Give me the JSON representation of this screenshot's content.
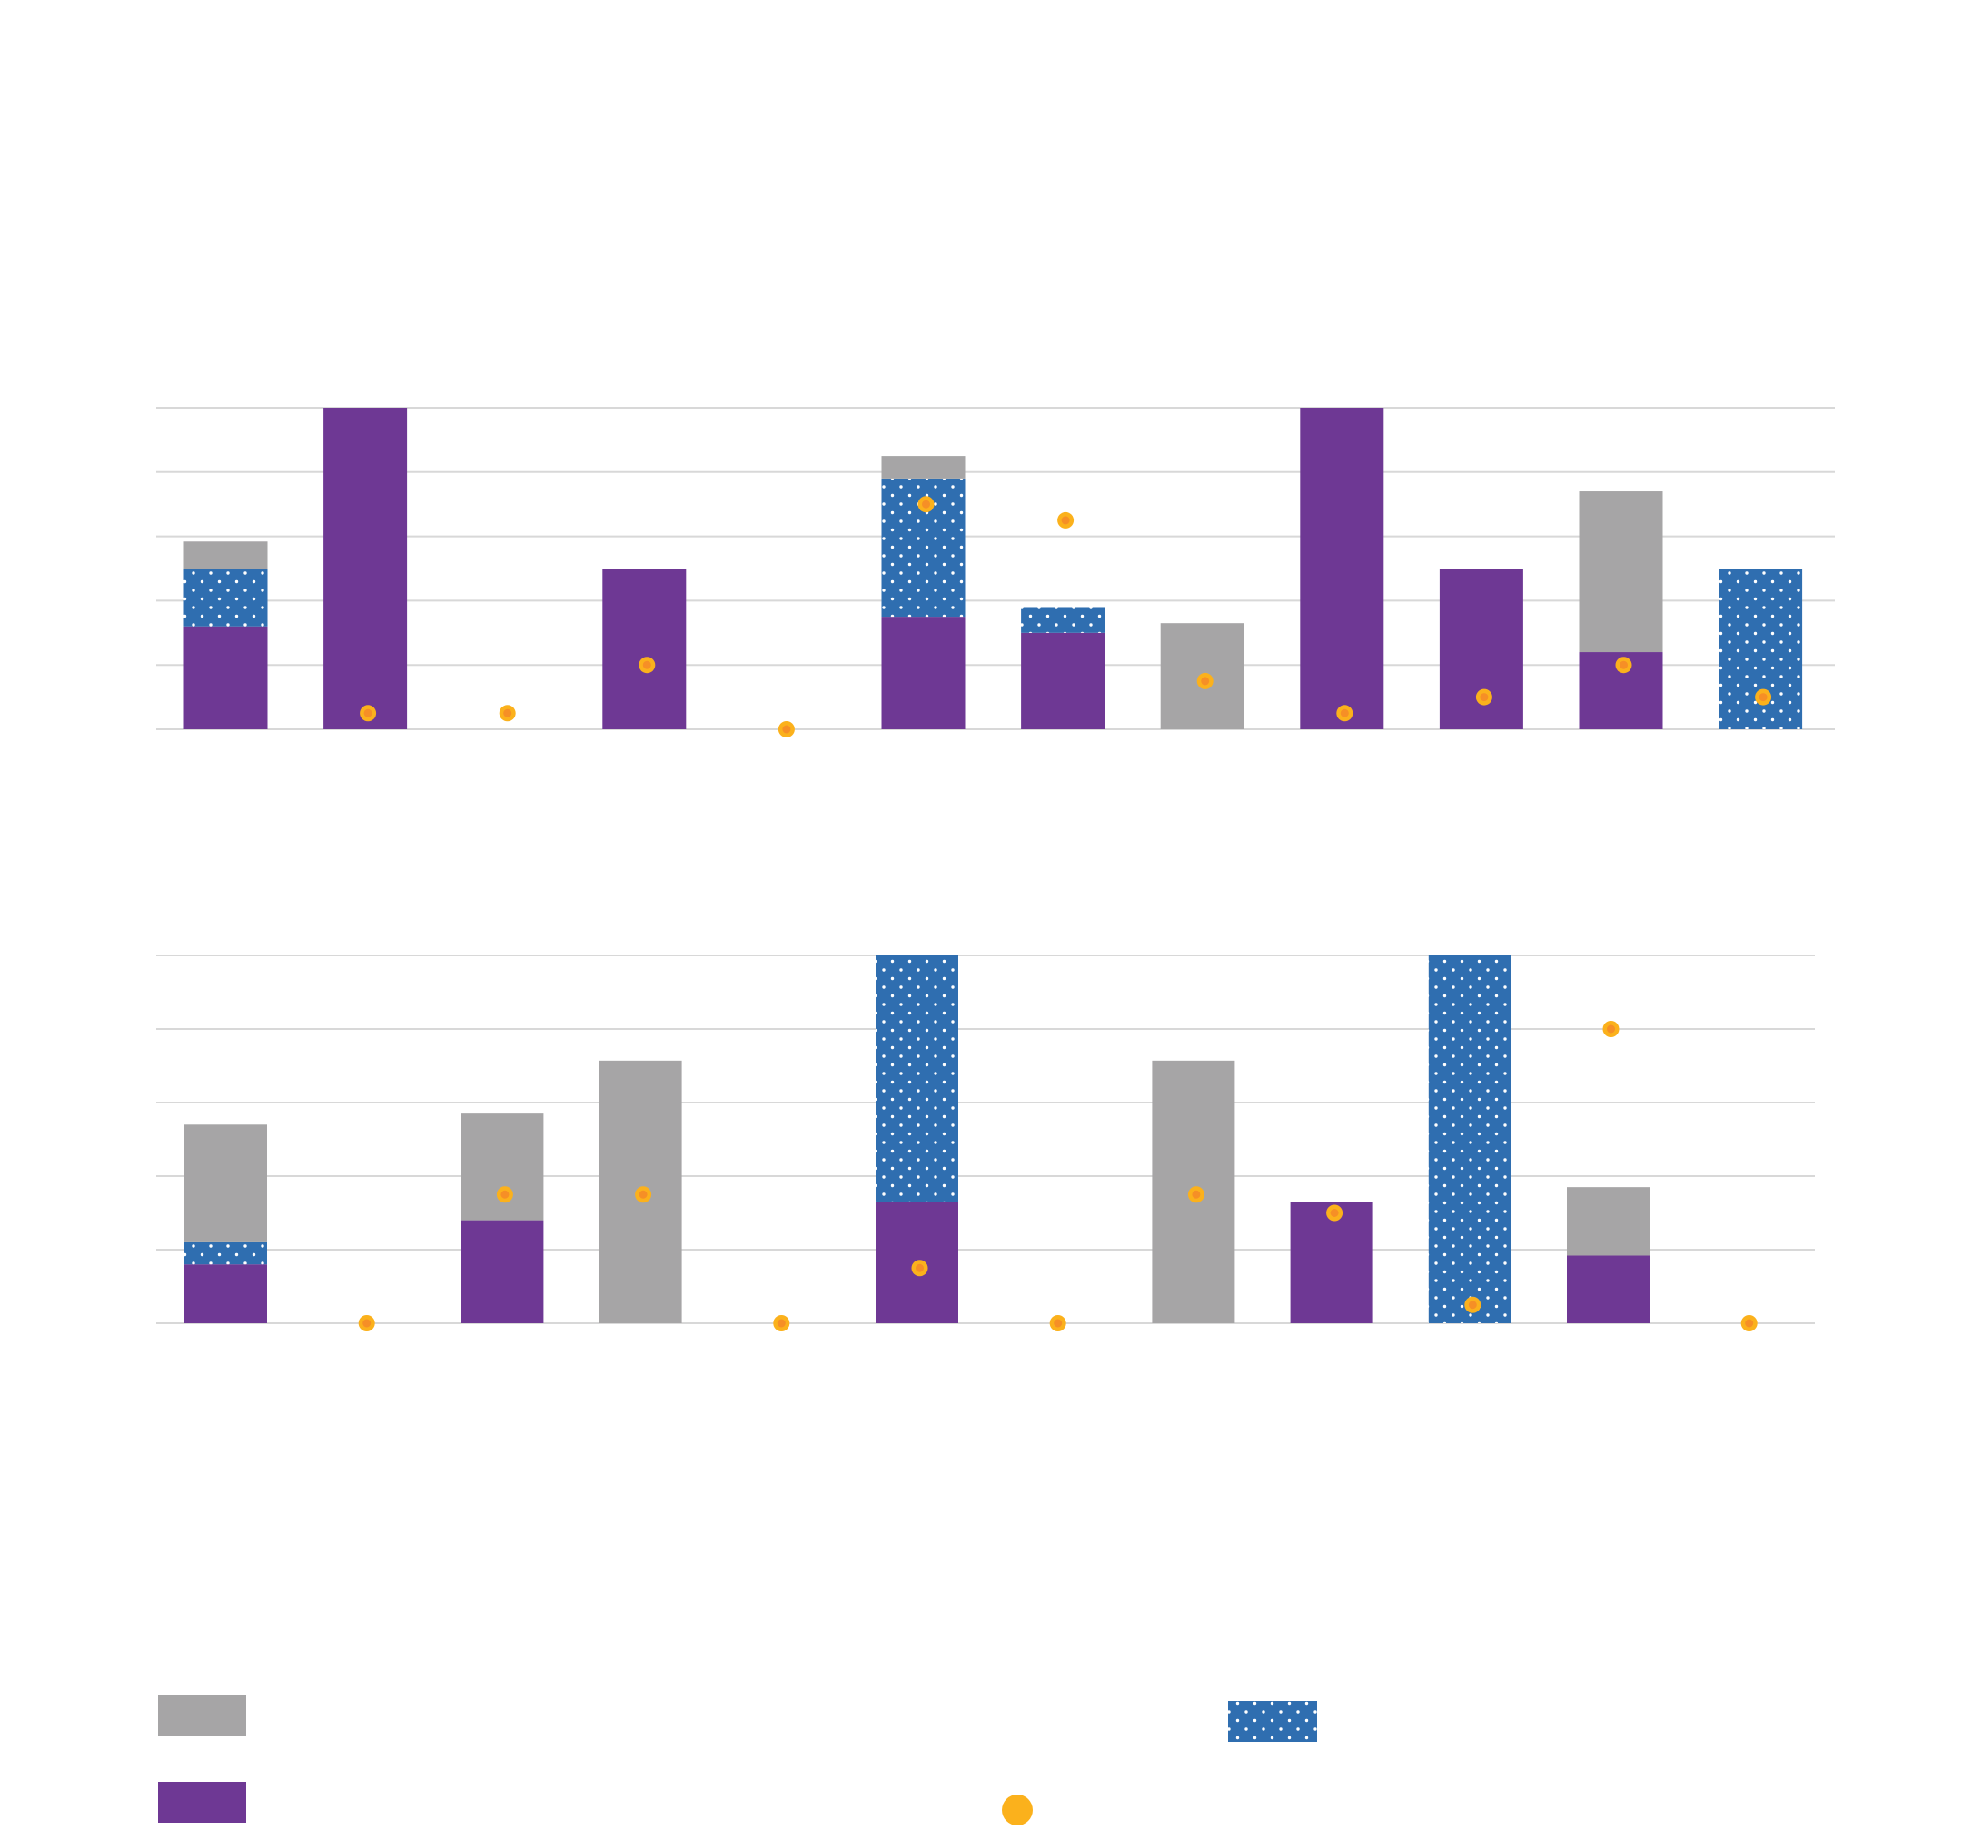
{
  "colors": {
    "gray": "#a6a5a6",
    "purple": "#6e3894",
    "blue": "#2f6eb0",
    "dot": "#fbb11c",
    "dot_center": "#f68f26",
    "grid": "#d8d8d8",
    "pattern_dot": "#ffffff"
  },
  "legend": {
    "items": [
      {
        "key": "gray",
        "name": "",
        "icon": "swatch-gray"
      },
      {
        "key": "purple",
        "name": "",
        "icon": "swatch-purple"
      },
      {
        "key": "blue",
        "name": "",
        "icon": "swatch-blue-dotted"
      },
      {
        "key": "dot",
        "name": "",
        "icon": "marker-yellow-dot"
      }
    ]
  },
  "chart_data": [
    {
      "type": "bar",
      "stacked": true,
      "title": "",
      "xlabel": "",
      "ylabel": "",
      "ylim": [
        0,
        5
      ],
      "grid": true,
      "categories": [
        "",
        "",
        "",
        "",
        "",
        "",
        "",
        "",
        "",
        "",
        "",
        ""
      ],
      "series": [
        {
          "name": "",
          "key": "purple",
          "values": [
            1.6,
            5.0,
            0,
            2.5,
            0,
            1.75,
            1.5,
            0,
            5.0,
            2.5,
            1.2,
            0
          ]
        },
        {
          "name": "",
          "key": "blue",
          "values": [
            0.9,
            0,
            0,
            0,
            0,
            2.15,
            0.4,
            0,
            0,
            0,
            0,
            2.5
          ]
        },
        {
          "name": "",
          "key": "gray",
          "values": [
            0.42,
            0,
            0,
            0,
            0,
            0.35,
            0,
            1.65,
            0,
            0,
            2.5,
            0
          ]
        },
        {
          "name": "",
          "key": "dot",
          "type": "scatter",
          "values": [
            null,
            0.25,
            0.25,
            1.0,
            0,
            3.5,
            3.25,
            0.75,
            0.25,
            0.5,
            1.0,
            0.5
          ]
        }
      ]
    },
    {
      "type": "bar",
      "stacked": true,
      "title": "",
      "xlabel": "",
      "ylabel": "",
      "ylim": [
        0,
        5
      ],
      "grid": true,
      "categories": [
        "",
        "",
        "",
        "",
        "",
        "",
        "",
        "",
        "",
        "",
        "",
        ""
      ],
      "series": [
        {
          "name": "",
          "key": "purple",
          "values": [
            0.8,
            0,
            1.4,
            0,
            0,
            1.65,
            0,
            0,
            1.65,
            0,
            0.92,
            0
          ]
        },
        {
          "name": "",
          "key": "blue",
          "values": [
            0.3,
            0,
            0,
            0,
            0,
            3.35,
            0,
            0,
            0,
            5.0,
            0,
            0
          ]
        },
        {
          "name": "",
          "key": "gray",
          "values": [
            1.6,
            0,
            1.45,
            3.57,
            0,
            0,
            0,
            3.57,
            0,
            0,
            0.93,
            0
          ]
        },
        {
          "name": "",
          "key": "dot",
          "type": "scatter",
          "values": [
            null,
            0,
            1.75,
            1.75,
            0,
            0.75,
            0,
            1.75,
            1.5,
            0.25,
            4.0,
            0
          ]
        }
      ]
    }
  ]
}
